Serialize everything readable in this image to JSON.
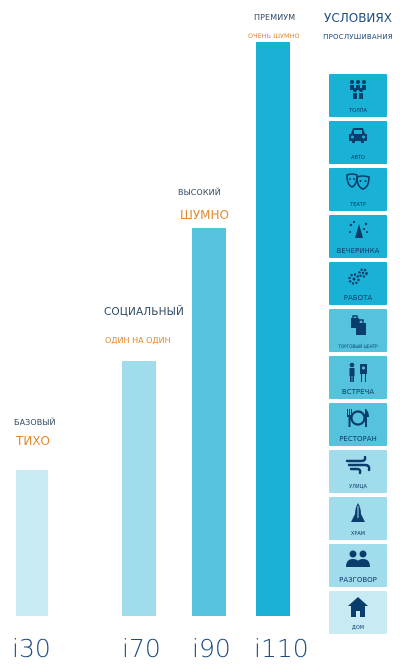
{
  "chart_data": {
    "type": "bar",
    "categories": [
      "i30",
      "i70",
      "i90",
      "i110"
    ],
    "values": [
      1,
      2,
      3,
      4
    ],
    "levels": [
      "БАЗОВЫЙ",
      "СОЦИАЛЬНЫЙ",
      "ВЫСОКИЙ",
      "ПРЕМИУМ"
    ],
    "volumes": [
      "ТИХО",
      "ОДИН НА ОДИН",
      "ШУМНО",
      "ОЧЕНЬ ШУМНО"
    ],
    "colors": [
      "#c8ebf3",
      "#a1dcec",
      "#55c3dc",
      "#1ab1d6"
    ]
  },
  "conditions_title": [
    "УСЛОВИЯХ",
    "ПРОСЛУШИВАНИЯ"
  ],
  "conditions": [
    {
      "label": "ТОЛПА",
      "icon": "crowd-icon",
      "color": "#1ab1d6"
    },
    {
      "label": "АВТО",
      "icon": "car-icon",
      "color": "#1ab1d6"
    },
    {
      "label": "ТЕАТР",
      "icon": "theater-masks-icon",
      "color": "#1ab1d6"
    },
    {
      "label": "ВЕЧЕРИНКА",
      "icon": "party-icon",
      "color": "#1ab1d6"
    },
    {
      "label": "РАБОТА",
      "icon": "gears-icon",
      "color": "#1ab1d6"
    },
    {
      "label": "ТОРГОВЫЙ ЦЕНТР",
      "icon": "shopping-bags-icon",
      "color": "#55c3dc"
    },
    {
      "label": "ВСТРЕЧА",
      "icon": "meeting-icon",
      "color": "#55c3dc"
    },
    {
      "label": "РЕСТОРАН",
      "icon": "restaurant-icon",
      "color": "#55c3dc"
    },
    {
      "label": "УЛИЦА",
      "icon": "wind-icon",
      "color": "#a1dcec"
    },
    {
      "label": "ХРАМ",
      "icon": "praying-hands-icon",
      "color": "#a1dcec"
    },
    {
      "label": "РАЗГОВОР",
      "icon": "conversation-icon",
      "color": "#a1dcec"
    },
    {
      "label": "ДОМ",
      "icon": "home-icon",
      "color": "#c8ebf3"
    }
  ]
}
